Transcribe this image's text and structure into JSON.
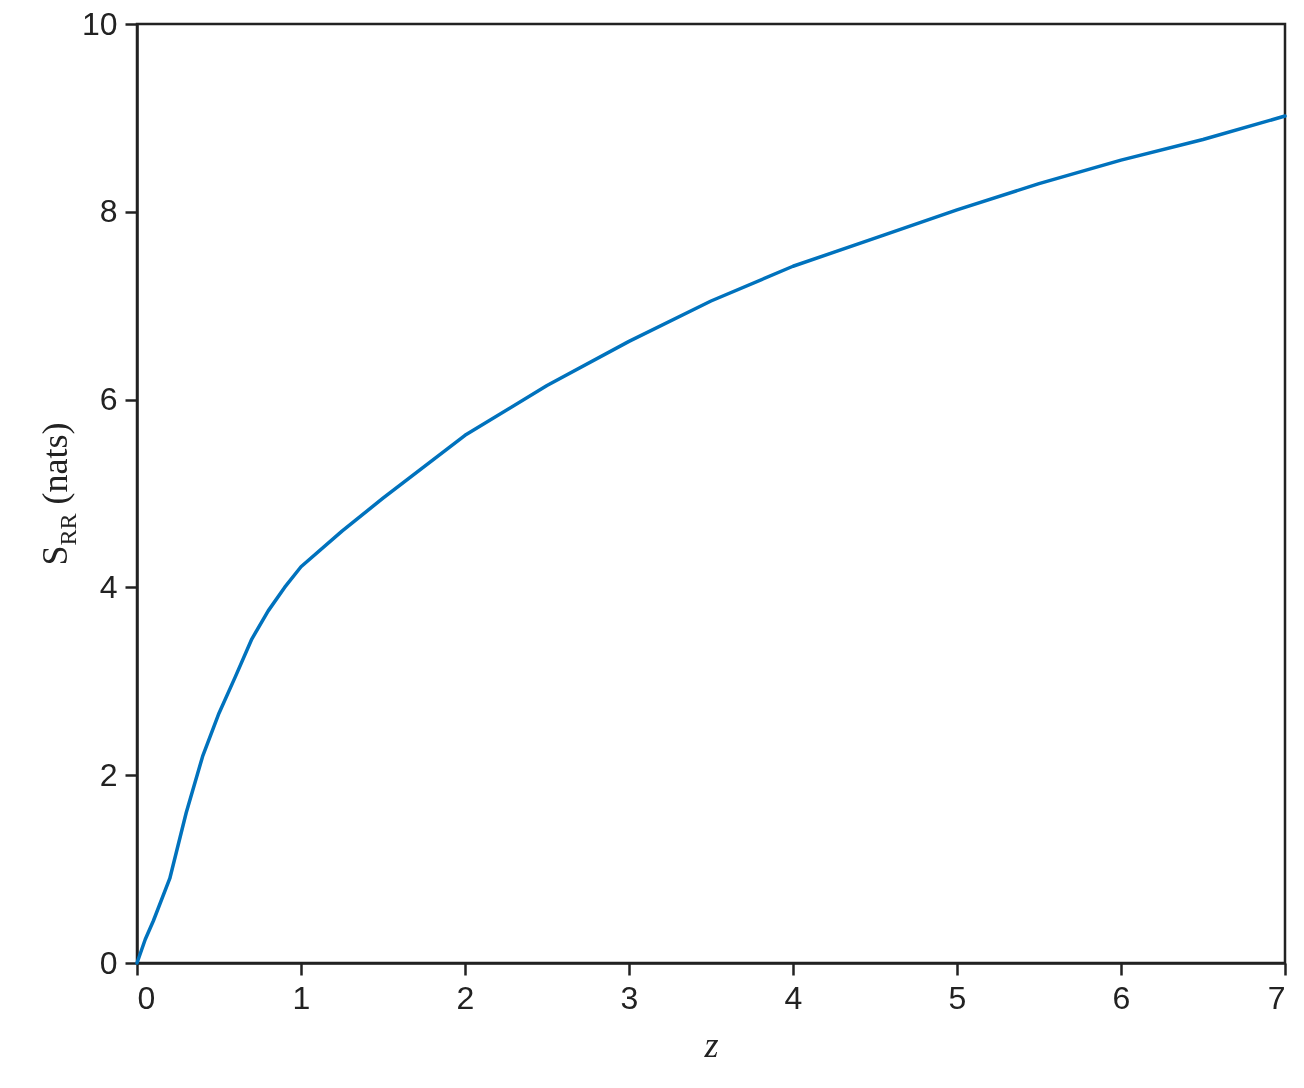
{
  "chart_data": {
    "type": "line",
    "xlabel": "z",
    "ylabel": "S$_{RR}$ (nats)",
    "x": [
      0,
      0.05,
      0.1,
      0.2,
      0.3,
      0.4,
      0.5,
      0.6,
      0.7,
      0.8,
      0.9,
      1.0,
      1.25,
      1.5,
      2.0,
      2.5,
      3.0,
      3.5,
      4.0,
      4.5,
      5.0,
      5.5,
      6.0,
      6.5,
      7.0
    ],
    "series": [
      {
        "color": "#0072bd",
        "values": [
          0,
          0.25,
          0.45,
          0.9,
          1.6,
          2.2,
          2.66,
          3.05,
          3.45,
          3.75,
          4.0,
          4.22,
          4.6,
          4.95,
          5.62,
          6.15,
          6.62,
          7.05,
          7.42,
          7.72,
          8.02,
          8.3,
          8.55,
          8.77,
          9.02
        ]
      }
    ],
    "xlim": [
      0,
      7
    ],
    "ylim": [
      0,
      10
    ],
    "xticks": [
      0,
      1,
      2,
      3,
      4,
      5,
      6,
      7
    ],
    "yticks": [
      0,
      2,
      4,
      6,
      8,
      10
    ],
    "grid": false,
    "legend": false
  }
}
